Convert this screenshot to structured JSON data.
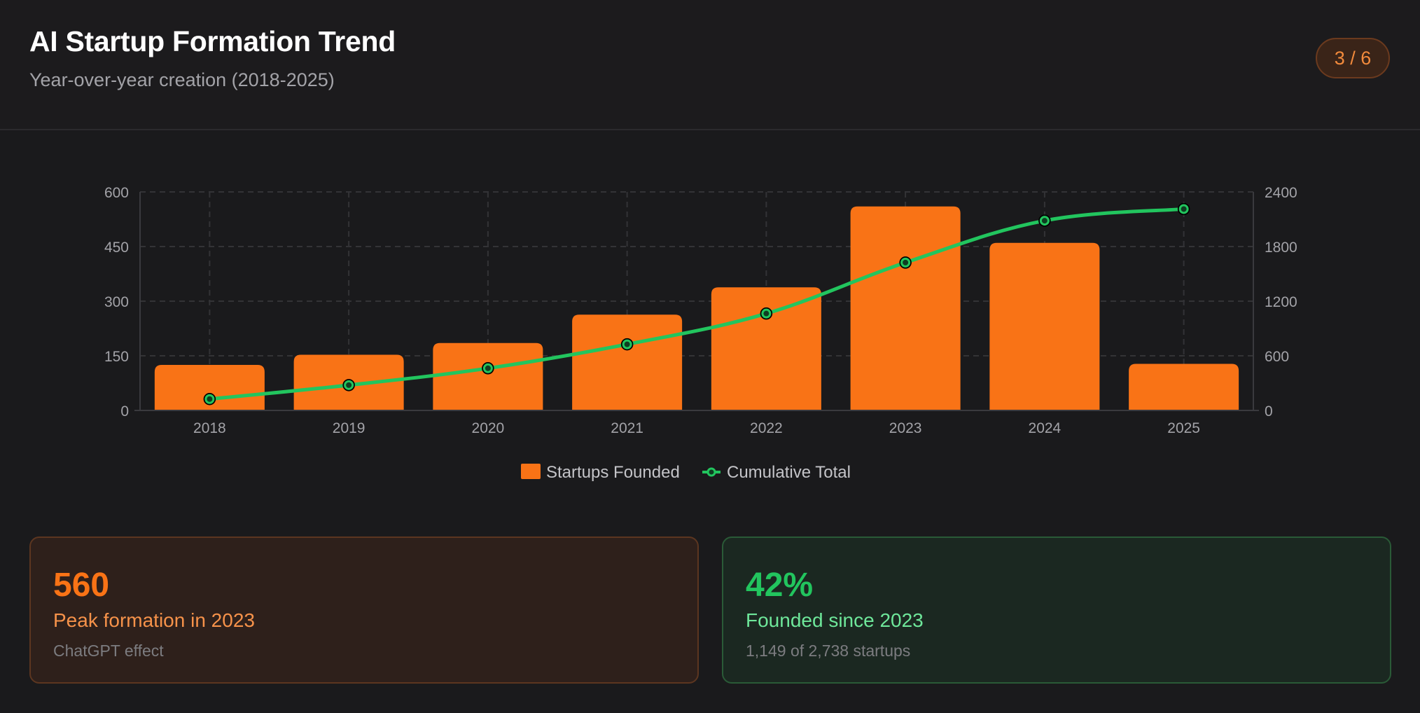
{
  "header": {
    "title": "AI Startup Formation Trend",
    "subtitle": "Year-over-year creation (2018-2025)",
    "page_indicator": "3 / 6"
  },
  "colors": {
    "bar": "#f97316",
    "line": "#22c55e",
    "point_fill": "#0f3d22"
  },
  "chart_data": {
    "type": "bar",
    "categories": [
      "2018",
      "2019",
      "2020",
      "2021",
      "2022",
      "2023",
      "2024",
      "2025"
    ],
    "series": [
      {
        "name": "Startups Founded",
        "type": "bar",
        "axis": "left",
        "values": [
          125,
          153,
          185,
          263,
          338,
          560,
          460,
          128
        ]
      },
      {
        "name": "Cumulative Total",
        "type": "line",
        "axis": "right",
        "values": [
          125,
          278,
          463,
          726,
          1064,
          1624,
          2084,
          2212
        ]
      }
    ],
    "y_left": {
      "ticks": [
        "0",
        "150",
        "300",
        "450",
        "600"
      ],
      "range": [
        0,
        600
      ]
    },
    "y_right": {
      "ticks": [
        "0",
        "600",
        "1200",
        "1800",
        "2400"
      ],
      "range": [
        0,
        2400
      ]
    },
    "grid": true,
    "legend_position": "bottom-center"
  },
  "stats": [
    {
      "value": "560",
      "label": "Peak formation in 2023",
      "note": "ChatGPT effect"
    },
    {
      "value": "42%",
      "label": "Founded since 2023",
      "note": "1,149 of 2,738 startups"
    }
  ]
}
